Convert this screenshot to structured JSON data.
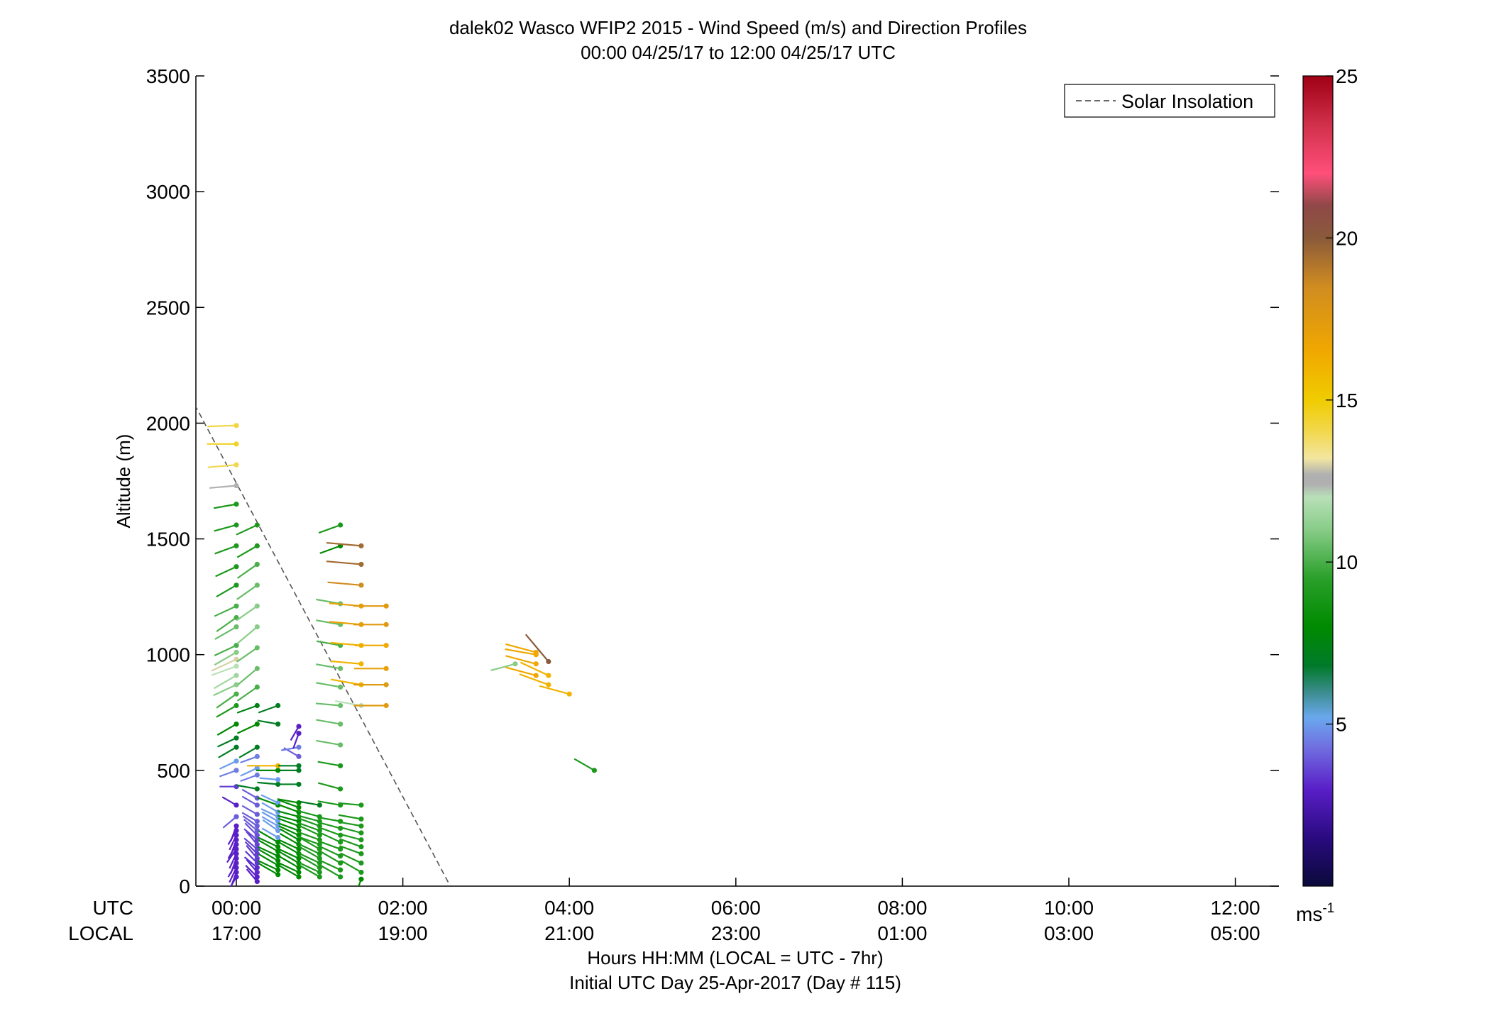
{
  "chart_data": {
    "type": "scatter",
    "title": "dalek02 Wasco WFIP2 2015 - Wind Speed (m/s) and Direction Profiles",
    "subtitle": "00:00 04/25/17 to 12:00 04/25/17  UTC",
    "ylabel": "Altitude (m)",
    "xlabel": "Hours HH:MM  (LOCAL = UTC - 7hr)",
    "xlabel2": "Initial UTC Day 25-Apr-2017 (Day # 115)",
    "row_labels": [
      "UTC",
      "LOCAL"
    ],
    "xlim_hours": [
      -0.5,
      12.5
    ],
    "ylim": [
      0,
      3500
    ],
    "x_ticks": [
      {
        "utc": "00:00",
        "local": "17:00"
      },
      {
        "utc": "02:00",
        "local": "19:00"
      },
      {
        "utc": "04:00",
        "local": "21:00"
      },
      {
        "utc": "06:00",
        "local": "23:00"
      },
      {
        "utc": "08:00",
        "local": "01:00"
      },
      {
        "utc": "10:00",
        "local": "03:00"
      },
      {
        "utc": "12:00",
        "local": "05:00"
      }
    ],
    "y_ticks": [
      0,
      500,
      1000,
      1500,
      2000,
      2500,
      3000,
      3500
    ],
    "legend": {
      "position": "top-right",
      "entries": [
        "Solar Insolation"
      ]
    },
    "solar_insolation_line": {
      "x_hours": [
        -0.5,
        2.57
      ],
      "y": [
        2080,
        0
      ]
    },
    "colorbar": {
      "ticks": [
        5,
        10,
        15,
        20,
        25
      ],
      "unit_label": "ms",
      "unit_exp": "-1",
      "range": [
        0,
        25
      ]
    },
    "grid": false,
    "profiles": [
      {
        "t": 0.0,
        "obs": [
          [
            40,
            3,
            210
          ],
          [
            60,
            3,
            200
          ],
          [
            80,
            3,
            205
          ],
          [
            100,
            3,
            210
          ],
          [
            120,
            3,
            200
          ],
          [
            140,
            3,
            205
          ],
          [
            160,
            3,
            215
          ],
          [
            180,
            3,
            210
          ],
          [
            200,
            3,
            200
          ],
          [
            220,
            3,
            205
          ],
          [
            240,
            3,
            210
          ],
          [
            260,
            3,
            200
          ],
          [
            300,
            4,
            230
          ],
          [
            350,
            3,
            300
          ],
          [
            430,
            3.5,
            270
          ],
          [
            500,
            4.5,
            250
          ],
          [
            540,
            5,
            245
          ],
          [
            600,
            7,
            240
          ],
          [
            640,
            7,
            245
          ],
          [
            700,
            8,
            240
          ],
          [
            780,
            9,
            240
          ],
          [
            830,
            10,
            235
          ],
          [
            870,
            11,
            245
          ],
          [
            910,
            11.5,
            240
          ],
          [
            950,
            12,
            250
          ],
          [
            980,
            13,
            245
          ],
          [
            1010,
            11,
            240
          ],
          [
            1040,
            10,
            245
          ],
          [
            1120,
            10.5,
            240
          ],
          [
            1160,
            10,
            235
          ],
          [
            1210,
            10,
            245
          ],
          [
            1300,
            9,
            240
          ],
          [
            1380,
            9,
            245
          ],
          [
            1470,
            9,
            250
          ],
          [
            1560,
            9,
            255
          ],
          [
            1650,
            9,
            260
          ],
          [
            1730,
            12.5,
            265
          ],
          [
            1820,
            14,
            265
          ],
          [
            1910,
            14.5,
            270
          ],
          [
            1990,
            14.2,
            268
          ]
        ]
      },
      {
        "t": 0.25,
        "obs": [
          [
            20,
            3,
            320
          ],
          [
            40,
            3,
            315
          ],
          [
            60,
            3.2,
            320
          ],
          [
            80,
            3.2,
            310
          ],
          [
            100,
            3.4,
            315
          ],
          [
            120,
            3.5,
            320
          ],
          [
            140,
            3.5,
            315
          ],
          [
            160,
            3.6,
            310
          ],
          [
            180,
            3.6,
            320
          ],
          [
            200,
            3.6,
            310
          ],
          [
            220,
            3.8,
            315
          ],
          [
            240,
            4,
            310
          ],
          [
            260,
            4,
            305
          ],
          [
            280,
            4,
            300
          ],
          [
            310,
            4,
            300
          ],
          [
            350,
            4,
            300
          ],
          [
            380,
            4,
            300
          ],
          [
            420,
            7,
            280
          ],
          [
            480,
            4.5,
            250
          ],
          [
            510,
            5,
            245
          ],
          [
            560,
            4.5,
            250
          ],
          [
            600,
            7,
            240
          ],
          [
            700,
            8,
            245
          ],
          [
            780,
            7.5,
            250
          ],
          [
            860,
            10,
            235
          ],
          [
            940,
            10.5,
            230
          ],
          [
            1030,
            10.5,
            235
          ],
          [
            1120,
            11,
            230
          ],
          [
            1210,
            11,
            235
          ],
          [
            1300,
            10.5,
            235
          ],
          [
            1390,
            10,
            235
          ],
          [
            1470,
            9,
            240
          ],
          [
            1560,
            9,
            245
          ]
        ]
      },
      {
        "t": 0.5,
        "obs": [
          [
            50,
            8,
            300
          ],
          [
            70,
            8,
            295
          ],
          [
            90,
            8,
            300
          ],
          [
            110,
            8,
            300
          ],
          [
            130,
            8,
            295
          ],
          [
            150,
            8,
            300
          ],
          [
            170,
            8,
            295
          ],
          [
            190,
            8,
            300
          ],
          [
            210,
            5,
            300
          ],
          [
            240,
            5,
            305
          ],
          [
            260,
            5,
            300
          ],
          [
            280,
            5,
            300
          ],
          [
            300,
            5,
            295
          ],
          [
            320,
            5,
            300
          ],
          [
            350,
            8,
            290
          ],
          [
            360,
            5,
            295
          ],
          [
            440,
            7,
            275
          ],
          [
            460,
            5,
            275
          ],
          [
            500,
            8,
            270
          ],
          [
            520,
            16,
            270
          ],
          [
            700,
            7,
            280
          ],
          [
            780,
            7,
            250
          ]
        ]
      },
      {
        "t": 0.75,
        "obs": [
          [
            40,
            8,
            300
          ],
          [
            60,
            8,
            295
          ],
          [
            80,
            8,
            300
          ],
          [
            100,
            8,
            300
          ],
          [
            120,
            8,
            295
          ],
          [
            140,
            8,
            300
          ],
          [
            160,
            8,
            295
          ],
          [
            180,
            8,
            300
          ],
          [
            200,
            8,
            300
          ],
          [
            220,
            8,
            295
          ],
          [
            240,
            8,
            290
          ],
          [
            260,
            8,
            290
          ],
          [
            280,
            8,
            285
          ],
          [
            300,
            8,
            285
          ],
          [
            320,
            8,
            290
          ],
          [
            340,
            8,
            290
          ],
          [
            360,
            8,
            280
          ],
          [
            440,
            7,
            270
          ],
          [
            500,
            7,
            270
          ],
          [
            520,
            7,
            270
          ],
          [
            560,
            4,
            300
          ],
          [
            600,
            4.5,
            260
          ],
          [
            660,
            3,
            200
          ],
          [
            690,
            3,
            210
          ]
        ]
      },
      {
        "t": 1.0,
        "obs": [
          [
            40,
            9,
            300
          ],
          [
            60,
            9,
            295
          ],
          [
            80,
            9,
            300
          ],
          [
            100,
            9,
            295
          ],
          [
            120,
            9,
            300
          ],
          [
            140,
            9,
            295
          ],
          [
            160,
            9,
            300
          ],
          [
            180,
            9,
            290
          ],
          [
            200,
            9,
            290
          ],
          [
            220,
            9,
            295
          ],
          [
            240,
            9,
            290
          ],
          [
            260,
            9,
            290
          ],
          [
            280,
            9,
            285
          ],
          [
            300,
            9,
            285
          ],
          [
            350,
            7,
            280
          ]
        ]
      },
      {
        "t": 1.25,
        "obs": [
          [
            40,
            9,
            300
          ],
          [
            70,
            9,
            295
          ],
          [
            100,
            9,
            300
          ],
          [
            130,
            9,
            295
          ],
          [
            160,
            9,
            290
          ],
          [
            190,
            9,
            295
          ],
          [
            220,
            9,
            290
          ],
          [
            250,
            9,
            285
          ],
          [
            280,
            9,
            280
          ],
          [
            350,
            9,
            280
          ],
          [
            420,
            9,
            285
          ],
          [
            520,
            9,
            280
          ],
          [
            610,
            10.5,
            280
          ],
          [
            700,
            10.5,
            280
          ],
          [
            780,
            10.5,
            275
          ],
          [
            860,
            10.5,
            280
          ],
          [
            940,
            10.5,
            280
          ],
          [
            1040,
            10,
            280
          ],
          [
            1130,
            10.5,
            280
          ],
          [
            1220,
            10.5,
            280
          ],
          [
            1470,
            8,
            250
          ],
          [
            1560,
            9,
            250
          ]
        ]
      },
      {
        "t": 1.5,
        "obs": [
          [
            30,
            8,
            200
          ],
          [
            60,
            9,
            300
          ],
          [
            100,
            9,
            295
          ],
          [
            140,
            9,
            290
          ],
          [
            170,
            9,
            290
          ],
          [
            200,
            9,
            285
          ],
          [
            230,
            9,
            285
          ],
          [
            260,
            9,
            280
          ],
          [
            290,
            9,
            280
          ],
          [
            350,
            9,
            275
          ],
          [
            780,
            12,
            280
          ],
          [
            870,
            16,
            280
          ],
          [
            960,
            16,
            275
          ],
          [
            1040,
            16,
            275
          ],
          [
            1130,
            17,
            275
          ],
          [
            1210,
            17,
            275
          ],
          [
            1300,
            18.5,
            275
          ],
          [
            1390,
            19.5,
            275
          ],
          [
            1470,
            19.5,
            275
          ]
        ]
      },
      {
        "t": 1.8,
        "obs": [
          [
            780,
            17.5,
            270
          ],
          [
            870,
            17.5,
            270
          ],
          [
            940,
            17,
            270
          ],
          [
            1040,
            16.5,
            270
          ],
          [
            1130,
            17.5,
            270
          ],
          [
            1210,
            17.5,
            270
          ]
        ]
      },
      {
        "t": 3.35,
        "obs": [
          [
            960,
            11,
            255
          ]
        ]
      },
      {
        "t": 3.6,
        "obs": [
          [
            910,
            16.5,
            285
          ],
          [
            960,
            16.5,
            285
          ],
          [
            1000,
            16.5,
            280
          ],
          [
            1010,
            16.5,
            285
          ]
        ]
      },
      {
        "t": 3.75,
        "obs": [
          [
            870,
            16,
            290
          ],
          [
            910,
            16,
            295
          ],
          [
            970,
            20,
            320
          ]
        ]
      },
      {
        "t": 4.0,
        "obs": [
          [
            830,
            16,
            285
          ]
        ]
      },
      {
        "t": 4.3,
        "obs": [
          [
            500,
            9,
            300
          ]
        ]
      }
    ]
  }
}
